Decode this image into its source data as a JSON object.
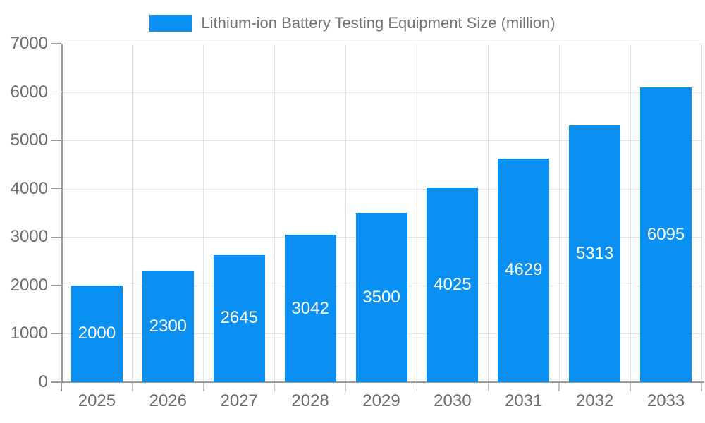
{
  "chart_data": {
    "type": "bar",
    "title": "Lithium-ion Battery Testing Equipment Size (million)",
    "legend_entries": [
      "Lithium-ion Battery Testing Equipment Size (million)"
    ],
    "legend_position": "top-center",
    "categories": [
      "2025",
      "2026",
      "2027",
      "2028",
      "2029",
      "2030",
      "2031",
      "2032",
      "2033"
    ],
    "values": [
      2000,
      2300,
      2645,
      3042,
      3500,
      4025,
      4629,
      5313,
      6095
    ],
    "xlabel": "",
    "ylabel": "",
    "ylim": [
      0,
      7000
    ],
    "y_ticks": [
      0,
      1000,
      2000,
      3000,
      4000,
      5000,
      6000,
      7000
    ],
    "grid": true,
    "value_label_position": "inside-center",
    "colors": {
      "bar": "#0a8ff2",
      "value_label": "#ffffff",
      "grid": "#e2e2e2",
      "axis": "#9b9b9b",
      "tick": "#c2c2c2",
      "tick_text": "#6d6d6d",
      "legend_text": "#737373",
      "background": "#ffffff"
    }
  }
}
